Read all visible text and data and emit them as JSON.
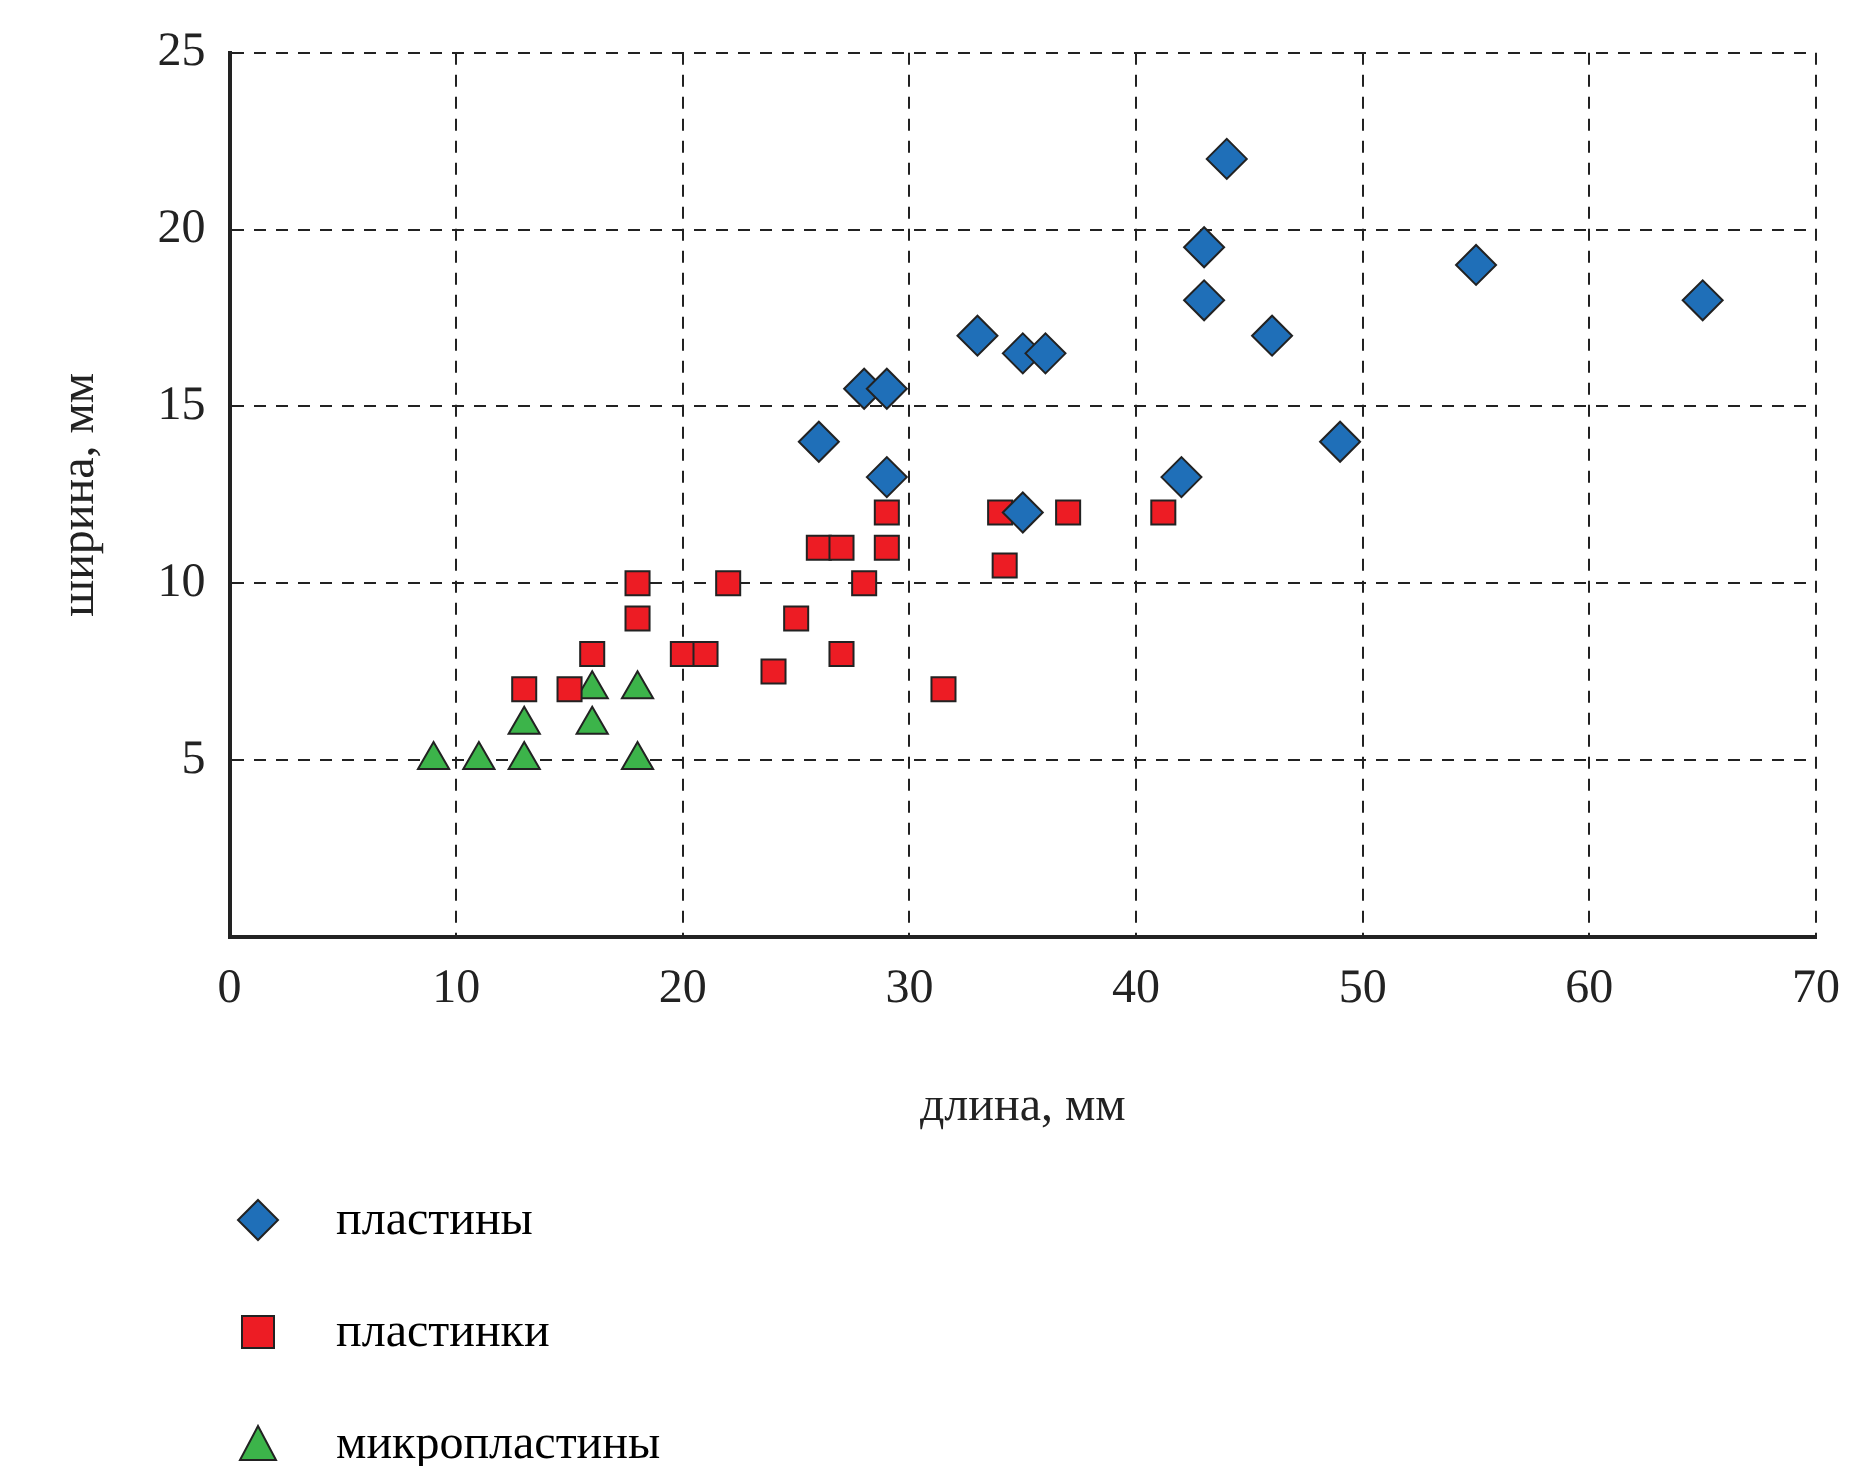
{
  "chart_data": {
    "type": "scatter",
    "xlabel": "длина, мм",
    "ylabel": "ширина, мм",
    "xlim": [
      0,
      70
    ],
    "xticks": [
      0,
      10,
      20,
      30,
      40,
      50,
      60,
      70
    ],
    "ylim": [
      0,
      25
    ],
    "yticks": [
      {
        "value": 0,
        "label": null
      },
      5,
      10,
      15,
      20,
      25
    ],
    "grid": true,
    "legend": "bottom left",
    "series": [
      {
        "name": "пластины",
        "color": "#1f6fb8",
        "marker": "diamond",
        "x": [
          26,
          28,
          29,
          29,
          33,
          35,
          36,
          35,
          42,
          43,
          43,
          44,
          46,
          49,
          55,
          65
        ],
        "values": [
          14,
          15.5,
          15.5,
          13,
          17,
          16.5,
          16.5,
          12,
          13,
          18,
          19.5,
          22,
          17,
          14,
          19,
          18
        ]
      },
      {
        "name": "пластинки",
        "color": "#ed1c24",
        "marker": "square",
        "x": [
          13,
          15,
          16,
          18,
          18,
          20,
          21,
          22,
          24,
          25,
          26,
          27,
          27,
          28,
          29,
          29,
          31.5,
          34.2,
          34,
          37,
          41.2
        ],
        "values": [
          7,
          7,
          8,
          9,
          10,
          8,
          8,
          10,
          7.5,
          9,
          11,
          11,
          8,
          10,
          11,
          12,
          7,
          10.5,
          12,
          12,
          12
        ]
      },
      {
        "name": "микропластины",
        "color": "#3cb44a",
        "marker": "triangle",
        "x": [
          9,
          11,
          13,
          13,
          16,
          16,
          18,
          18
        ],
        "values": [
          5,
          5,
          5,
          6,
          6,
          7,
          7,
          5
        ]
      }
    ]
  }
}
